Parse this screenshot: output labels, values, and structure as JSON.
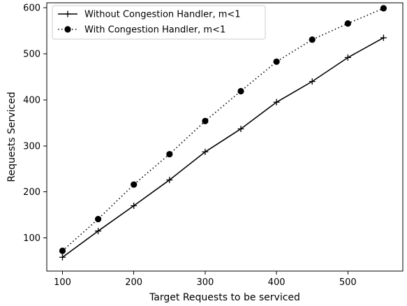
{
  "chart_data": {
    "type": "line",
    "title": "",
    "xlabel": "Target Requests to be serviced",
    "ylabel": "Requests Serviced",
    "xlim": [
      78,
      577
    ],
    "ylim": [
      28,
      611
    ],
    "xticks": [
      100,
      200,
      300,
      400,
      500
    ],
    "yticks": [
      100,
      200,
      300,
      400,
      500,
      600
    ],
    "grid": false,
    "legend_position": "top-left",
    "x": [
      100,
      150,
      200,
      250,
      300,
      350,
      400,
      450,
      500,
      550
    ],
    "series": [
      {
        "name": "Without Congestion Handler, m<1",
        "values": [
          58,
          115,
          170,
          226,
          287,
          337,
          395,
          440,
          492,
          535
        ],
        "line_style": "solid",
        "marker": "plus",
        "color": "#000000"
      },
      {
        "name": "With Congestion Handler, m<1",
        "values": [
          72,
          141,
          216,
          282,
          354,
          419,
          483,
          531,
          566,
          599
        ],
        "line_style": "dotted",
        "marker": "circle",
        "color": "#000000"
      }
    ]
  }
}
